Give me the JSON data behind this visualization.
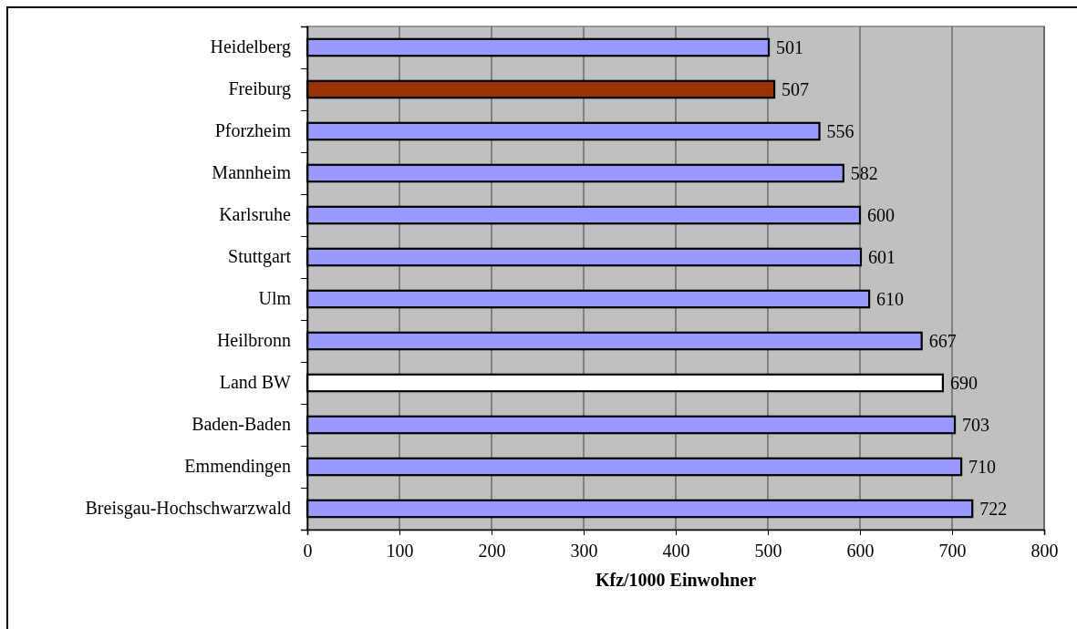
{
  "chart_data": {
    "type": "bar",
    "orientation": "horizontal",
    "categories": [
      "Heidelberg",
      "Freiburg",
      "Pforzheim",
      "Mannheim",
      "Karlsruhe",
      "Stuttgart",
      "Ulm",
      "Heilbronn",
      "Land BW",
      "Baden-Baden",
      "Emmendingen",
      "Breisgau-Hochschwarzwald"
    ],
    "values": [
      501,
      507,
      556,
      582,
      600,
      601,
      610,
      667,
      690,
      703,
      710,
      722
    ],
    "colors": [
      "#9999ff",
      "#993300",
      "#9999ff",
      "#9999ff",
      "#9999ff",
      "#9999ff",
      "#9999ff",
      "#9999ff",
      "#ffffff",
      "#9999ff",
      "#9999ff",
      "#9999ff"
    ],
    "xlabel": "Kfz/1000 Einwohner",
    "xlim": [
      0,
      800
    ],
    "xticks": [
      0,
      100,
      200,
      300,
      400,
      500,
      600,
      700,
      800
    ],
    "grid": "x",
    "data_labels": true
  }
}
